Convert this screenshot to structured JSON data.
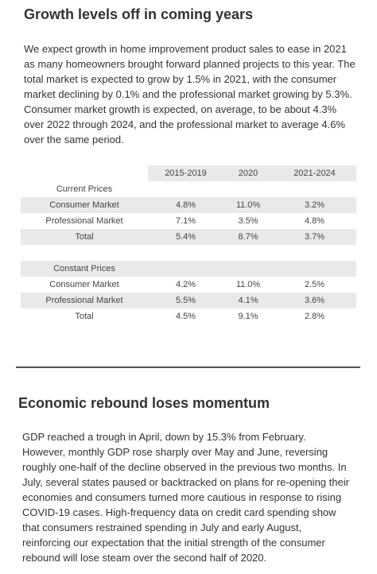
{
  "section1": {
    "heading": "Growth levels off in coming years",
    "paragraph": "We expect growth in home improvement product sales to ease in 2021 as many homeowners brought forward planned projects to this year. The total market is expected to grow by 1.5% in 2021, with the consumer market declining by 0.1% and the professional market growing by 5.3%. Consumer market growth is expected, on average, to be about 4.3% over 2022 through 2024, and the professional market to average 4.6% over the same period."
  },
  "table": {
    "columns": [
      "",
      "2015-2019",
      "2020",
      "2021-2024"
    ],
    "current_label": "Current Prices",
    "current_rows": [
      [
        "Consumer Market",
        "4.8%",
        "11.0%",
        "3.2%"
      ],
      [
        "Professional Market",
        "7.1%",
        "3.5%",
        "4.8%"
      ],
      [
        "Total",
        "5.4%",
        "8.7%",
        "3.7%"
      ]
    ],
    "constant_label": "Constant Prices",
    "constant_rows": [
      [
        "Consumer Market",
        "4.2%",
        "11.0%",
        "2.5%"
      ],
      [
        "Professional Market",
        "5.5%",
        "4.1%",
        "3.6%"
      ],
      [
        "Total",
        "4.5%",
        "9.1%",
        "2.8%"
      ]
    ]
  },
  "section2": {
    "heading": "Economic rebound loses momentum",
    "paragraph": "GDP reached a trough in April, down by 15.3% from February. However, monthly GDP rose sharply over May and June, reversing roughly one-half of the decline observed in the previous two months. In July, several states paused or backtracked on plans for re-opening their economies and consumers turned more cautious in response to rising COVID-19 cases. High-frequency data on credit card spending show that consumers restrained spending in July and early August, reinforcing our expectation that the initial strength of the consumer rebound will lose steam over the second half of 2020."
  }
}
